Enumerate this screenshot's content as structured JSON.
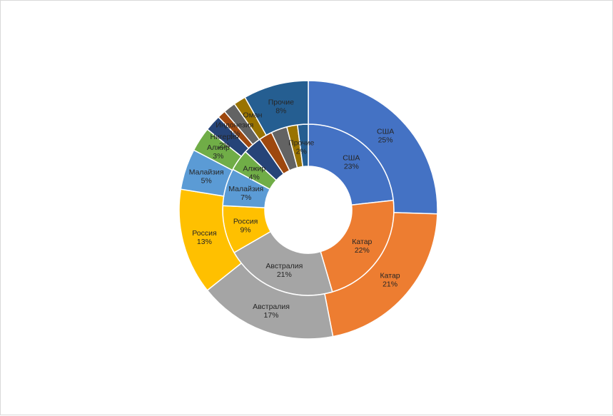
{
  "chart_data": {
    "type": "pie",
    "variant": "doughnut",
    "rings": [
      {
        "ring": "inner",
        "slices": [
          {
            "label": "США",
            "value": 23,
            "value_label": "23%",
            "color": "#4472C4"
          },
          {
            "label": "Катар",
            "value": 22,
            "value_label": "22%",
            "color": "#ED7D31"
          },
          {
            "label": "Австралия",
            "value": 21,
            "value_label": "21%",
            "color": "#A5A5A5"
          },
          {
            "label": "Россия",
            "value": 9,
            "value_label": "9%",
            "color": "#FFC000"
          },
          {
            "label": "Малайзия",
            "value": 7,
            "value_label": "7%",
            "color": "#5B9BD5"
          },
          {
            "label": "Алжир",
            "value": 4,
            "value_label": "4%",
            "color": "#70AD47"
          },
          {
            "label": "",
            "value": 3.5,
            "value_label": "",
            "color": "#264478"
          },
          {
            "label": "",
            "value": 2.5,
            "value_label": "",
            "color": "#9E480E"
          },
          {
            "label": "",
            "value": 3,
            "value_label": "",
            "color": "#636363"
          },
          {
            "label": "",
            "value": 2,
            "value_label": "",
            "color": "#997300"
          },
          {
            "label": "Прочие",
            "value": 2,
            "value_label": "2%",
            "color": "#255E91"
          }
        ]
      },
      {
        "ring": "outer",
        "slices": [
          {
            "label": "США",
            "value": 25,
            "value_label": "25%",
            "color": "#4472C4"
          },
          {
            "label": "Катар",
            "value": 21,
            "value_label": "21%",
            "color": "#ED7D31"
          },
          {
            "label": "Австралия",
            "value": 17,
            "value_label": "17%",
            "color": "#A5A5A5"
          },
          {
            "label": "Россия",
            "value": 13,
            "value_label": "13%",
            "color": "#FFC000"
          },
          {
            "label": "Малайзия",
            "value": 5,
            "value_label": "5%",
            "color": "#5B9BD5"
          },
          {
            "label": "Алжир",
            "value": 3,
            "value_label": "3%",
            "color": "#70AD47"
          },
          {
            "label": "Нигерия",
            "value": 2,
            "value_label": "2%",
            "color": "#264478"
          },
          {
            "label": "Индонезия",
            "value": 1,
            "value_label": "1%",
            "color": "#9E480E"
          },
          {
            "label": "",
            "value": 1.5,
            "value_label": "",
            "color": "#636363"
          },
          {
            "label": "Оман",
            "value": 1.5,
            "value_label": "",
            "color": "#997300"
          },
          {
            "label": "Прочие",
            "value": 8,
            "value_label": "8%",
            "color": "#255E91"
          }
        ]
      }
    ],
    "title": "",
    "legend": "none"
  }
}
